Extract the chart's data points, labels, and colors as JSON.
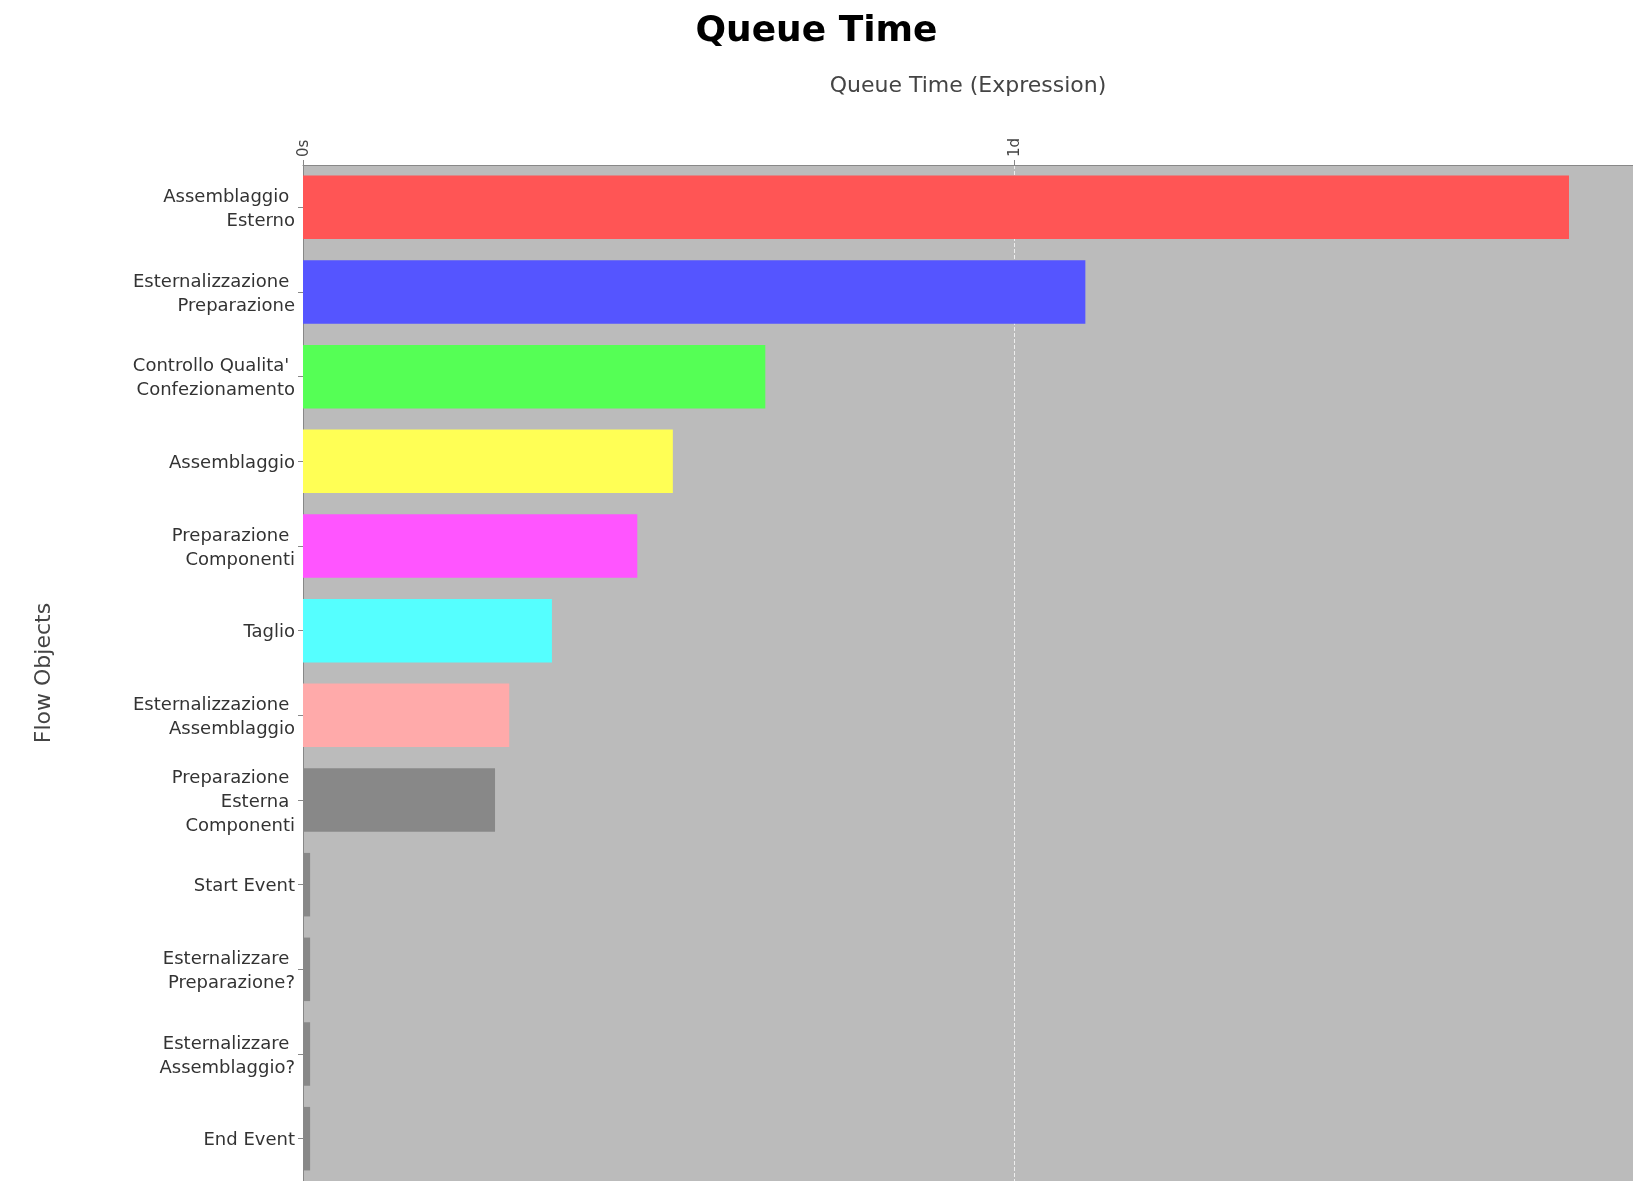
{
  "chart_data": {
    "type": "bar",
    "orientation": "horizontal",
    "title": "Queue Time",
    "xlabel": "Queue Time (Expression)",
    "ylabel": "Flow Objects",
    "categories": [
      "Assemblaggio Esterno",
      "Esternalizzazione Preparazione",
      "Controllo Qualita' Confezionamento",
      "Assemblaggio",
      "Preparazione Componenti",
      "Taglio",
      "Esternalizzazione Assemblaggio",
      "Preparazione Esterna Componenti",
      "Start Event",
      "Esternalizzare Preparazione?",
      "Esternalizzare Assemblaggio?",
      "End Event"
    ],
    "values": [
      1.78,
      1.1,
      0.65,
      0.52,
      0.47,
      0.35,
      0.29,
      0.27,
      0.01,
      0.01,
      0.01,
      0.01
    ],
    "colors": [
      "#ff5555",
      "#5555ff",
      "#55ff55",
      "#ffff55",
      "#ff55ff",
      "#55ffff",
      "#ffaaaa",
      "#888888",
      "#888888",
      "#888888",
      "#888888",
      "#888888"
    ],
    "xlim": [
      0,
      1.87
    ],
    "xticks": [
      {
        "value": 0,
        "label": "0s"
      },
      {
        "value": 1,
        "label": "1d"
      }
    ],
    "grid": "x"
  }
}
